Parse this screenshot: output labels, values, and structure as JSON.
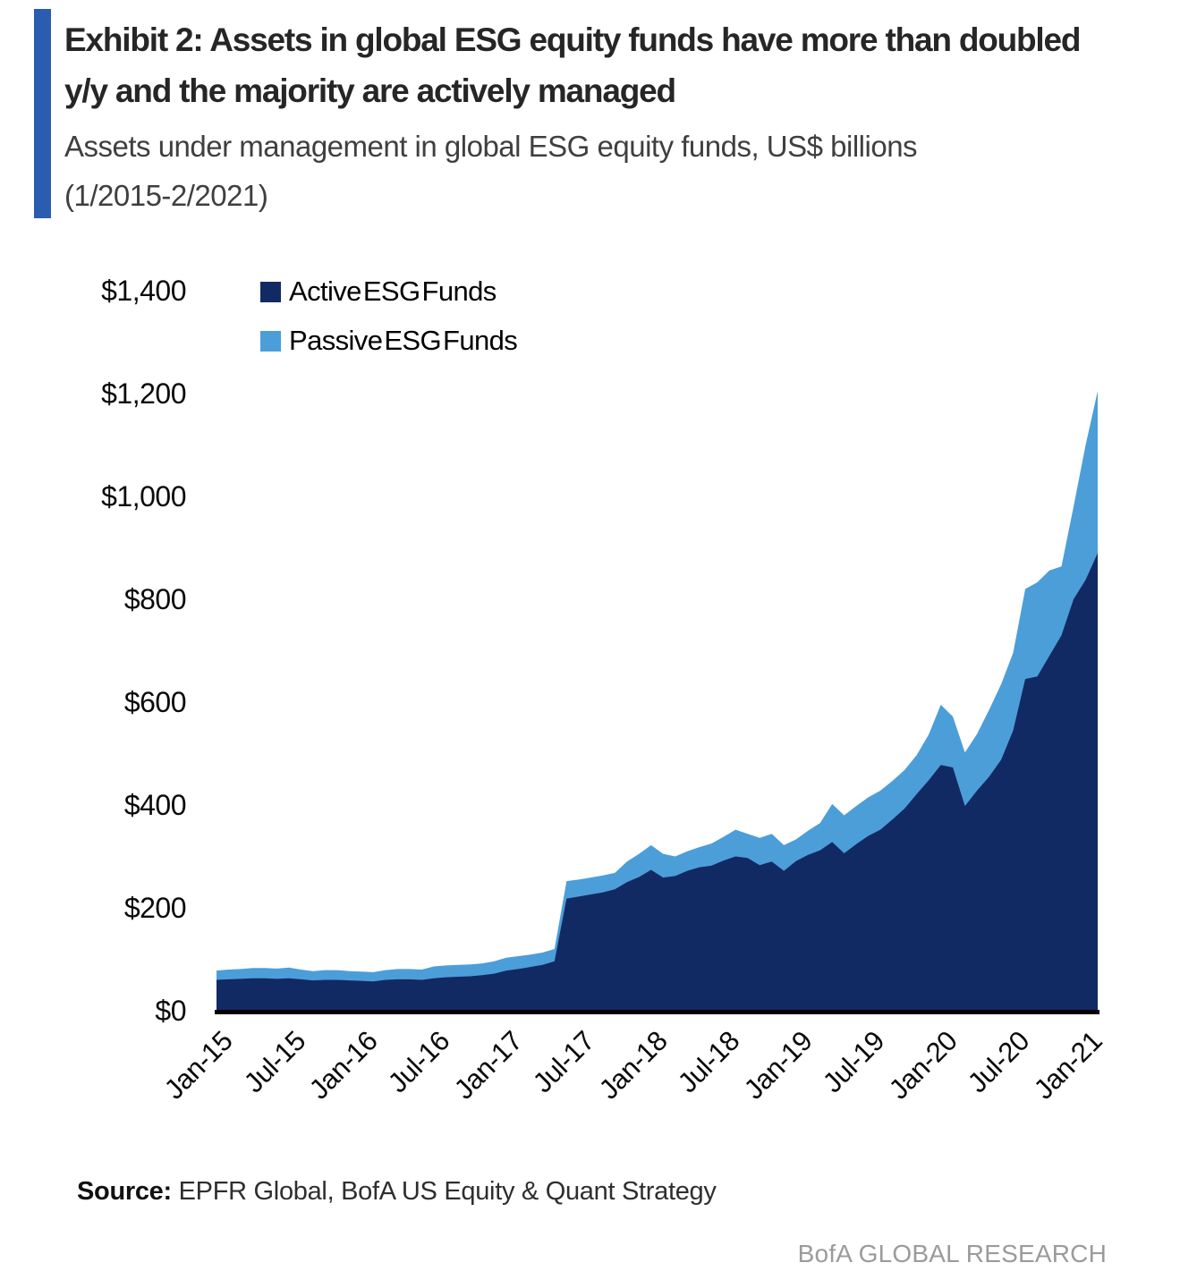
{
  "colors": {
    "accent_bar": "#2A5CB0",
    "active_area": "#122A64",
    "passive_area": "#4C9ED9",
    "axis": "#000000"
  },
  "header": {
    "title_line1": "Exhibit 2: Assets in global ESG equity funds have more than doubled",
    "title_line2": "y/y and the majority are actively managed",
    "subtitle_line1": "Assets under management in global ESG equity funds, US$ billions",
    "subtitle_line2": "(1/2015-2/2021)"
  },
  "legend": [
    {
      "label": "Active ESG Funds",
      "color": "#122A64"
    },
    {
      "label": "Passive ESG Funds",
      "color": "#4C9ED9"
    }
  ],
  "chart_data": {
    "type": "area",
    "stacked": true,
    "unit": "US$ billions",
    "ylim": [
      0,
      1400
    ],
    "grid": false,
    "legend_position": "top-left",
    "months": [
      "Jan-15",
      "Feb-15",
      "Mar-15",
      "Apr-15",
      "May-15",
      "Jun-15",
      "Jul-15",
      "Aug-15",
      "Sep-15",
      "Oct-15",
      "Nov-15",
      "Dec-15",
      "Jan-16",
      "Feb-16",
      "Mar-16",
      "Apr-16",
      "May-16",
      "Jun-16",
      "Jul-16",
      "Aug-16",
      "Sep-16",
      "Oct-16",
      "Nov-16",
      "Dec-16",
      "Jan-17",
      "Feb-17",
      "Mar-17",
      "Apr-17",
      "May-17",
      "Jun-17",
      "Jul-17",
      "Aug-17",
      "Sep-17",
      "Oct-17",
      "Nov-17",
      "Dec-17",
      "Jan-18",
      "Feb-18",
      "Mar-18",
      "Apr-18",
      "May-18",
      "Jun-18",
      "Jul-18",
      "Aug-18",
      "Sep-18",
      "Oct-18",
      "Nov-18",
      "Dec-18",
      "Jan-19",
      "Feb-19",
      "Mar-19",
      "Apr-19",
      "May-19",
      "Jun-19",
      "Jul-19",
      "Aug-19",
      "Sep-19",
      "Oct-19",
      "Nov-19",
      "Dec-19",
      "Jan-20",
      "Feb-20",
      "Mar-20",
      "Apr-20",
      "May-20",
      "Jun-20",
      "Jul-20",
      "Aug-20",
      "Sep-20",
      "Oct-20",
      "Nov-20",
      "Dec-20",
      "Jan-21",
      "Feb-21"
    ],
    "series": [
      {
        "name": "Active ESG Funds",
        "values": [
          60,
          61,
          62,
          63,
          63,
          62,
          63,
          61,
          59,
          60,
          60,
          59,
          58,
          57,
          60,
          61,
          61,
          60,
          63,
          65,
          66,
          67,
          69,
          72,
          78,
          81,
          85,
          89,
          96,
          218,
          222,
          226,
          230,
          236,
          250,
          260,
          274,
          259,
          262,
          272,
          279,
          282,
          292,
          300,
          297,
          283,
          290,
          272,
          291,
          303,
          312,
          328,
          306,
          324,
          340,
          352,
          372,
          393,
          421,
          448,
          478,
          473,
          398,
          428,
          455,
          488,
          545,
          645,
          650,
          690,
          730,
          800,
          838,
          890
        ]
      },
      {
        "name": "Passive ESG Funds",
        "values": [
          18,
          19,
          19,
          20,
          20,
          20,
          21,
          19,
          18,
          19,
          19,
          18,
          18,
          18,
          19,
          20,
          20,
          20,
          23,
          23,
          23,
          23,
          23,
          24,
          25,
          25,
          24,
          24,
          24,
          34,
          33,
          33,
          33,
          32,
          40,
          45,
          48,
          46,
          38,
          38,
          39,
          43,
          46,
          52,
          47,
          53,
          54,
          50,
          42,
          47,
          53,
          74,
          74,
          74,
          75,
          76,
          75,
          75,
          76,
          89,
          117,
          99,
          104,
          110,
          130,
          147,
          151,
          175,
          183,
          166,
          134,
          180,
          262,
          315
        ]
      }
    ],
    "y_tick_values": [
      0,
      200,
      400,
      600,
      800,
      1000,
      1200,
      1400
    ],
    "y_tick_labels": [
      "$0",
      "$200",
      "$400",
      "$600",
      "$800",
      "$1,000",
      "$1,200",
      "$1,400"
    ],
    "x_tick_labels": [
      "Jan-15",
      "Jul-15",
      "Jan-16",
      "Jul-16",
      "Jan-17",
      "Jul-17",
      "Jan-18",
      "Jul-18",
      "Jan-19",
      "Jul-19",
      "Jan-20",
      "Jul-20",
      "Jan-21"
    ]
  },
  "footer": {
    "source_label": "Source:",
    "source_text": "EPFR Global, BofA US Equity & Quant Strategy",
    "brand": "BofA GLOBAL RESEARCH"
  }
}
